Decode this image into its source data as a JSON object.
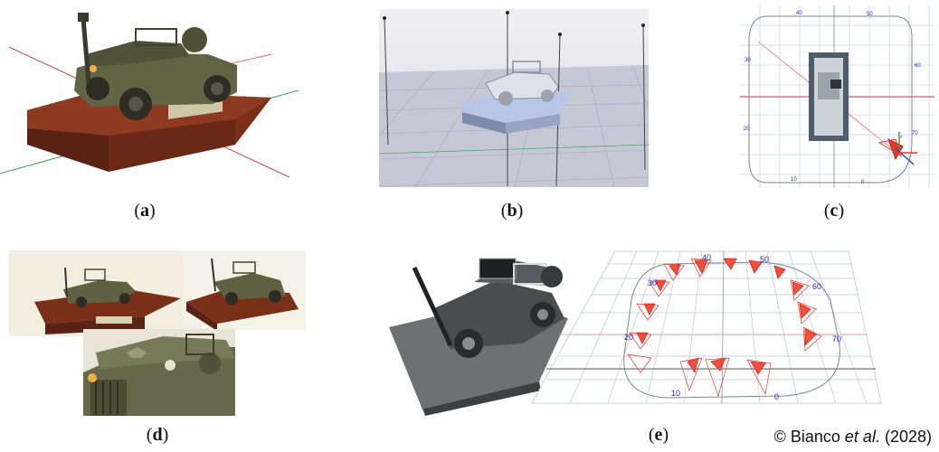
{
  "captions": {
    "a": {
      "open": "(",
      "letter": "a",
      "close": ")"
    },
    "b": {
      "open": "(",
      "letter": "b",
      "close": ")"
    },
    "c": {
      "open": "(",
      "letter": "c",
      "close": ")"
    },
    "d": {
      "open": "(",
      "letter": "d",
      "close": ")"
    },
    "e": {
      "open": "(",
      "letter": "e",
      "close": ")"
    }
  },
  "panel_c": {
    "labels": [
      "40",
      "50",
      "30",
      "60",
      "20",
      "70",
      "10",
      "0"
    ],
    "small_labels": [
      "4"
    ]
  },
  "panel_e": {
    "labels": [
      "40",
      "50",
      "30",
      "60",
      "20",
      "70",
      "10",
      "0"
    ]
  },
  "credit": {
    "prefix": "© Bianco ",
    "etal": "et al.",
    "year": " (2028)"
  },
  "colors": {
    "olive": "#5f6142",
    "wood": "#6e2a17",
    "grid_blue": "#c9d7e8",
    "camera_red": "#e23b2c",
    "label_blue": "#1a2bd8"
  }
}
